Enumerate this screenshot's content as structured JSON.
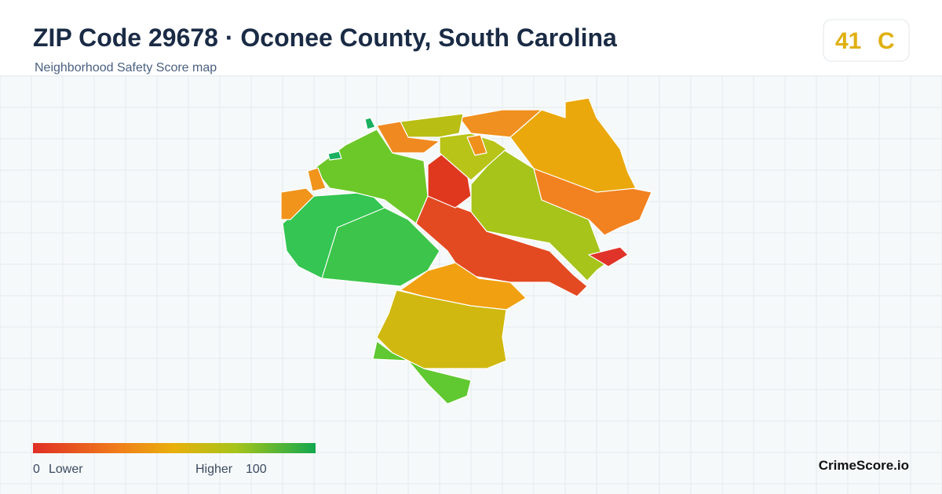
{
  "header": {
    "title": "ZIP Code 29678 · Oconee County, South Carolina",
    "subtitle": "Neighborhood Safety Score map"
  },
  "score": {
    "value": 41,
    "grade": "C"
  },
  "legend": {
    "min": 0,
    "min_label": "Lower",
    "max_label": "Higher",
    "max": 100
  },
  "brand": "CrimeScore.io"
}
